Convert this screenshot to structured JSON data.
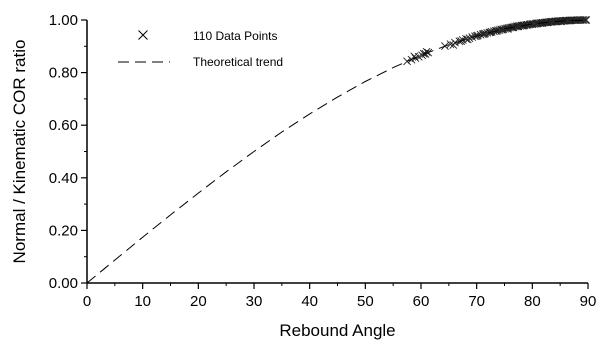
{
  "chart_data": {
    "type": "scatter",
    "xlabel": "Rebound Angle",
    "ylabel": "Normal / Kinematic COR ratio",
    "xlim": [
      0,
      90
    ],
    "ylim": [
      0,
      1.0
    ],
    "x_ticks": [
      "0",
      "10",
      "20",
      "30",
      "40",
      "50",
      "60",
      "70",
      "80",
      "90"
    ],
    "y_ticks": [
      "0.00",
      "0.20",
      "0.40",
      "0.60",
      "0.80",
      "1.00"
    ],
    "x_tick_values": [
      0,
      10,
      20,
      30,
      40,
      50,
      60,
      70,
      80,
      90
    ],
    "y_tick_values": [
      0,
      0.2,
      0.4,
      0.6,
      0.8,
      1.0
    ],
    "grid": false,
    "legend_position": "top-left",
    "legend": [
      {
        "label": "110 Data Points",
        "marker": "x"
      },
      {
        "label": "Theoretical trend",
        "line": "dashed"
      }
    ],
    "series": [
      {
        "name": "110 Data Points",
        "kind": "scatter",
        "marker": "x",
        "x": [
          57.5,
          58.3,
          59.0,
          59.6,
          60.2,
          60.8,
          61.3,
          64.3,
          65.3,
          66.1,
          66.9,
          67.5,
          68.1,
          68.7,
          69.2,
          69.7,
          70.2,
          70.7,
          71.1,
          71.5,
          71.9,
          72.3,
          72.7,
          73.1,
          73.4,
          73.8,
          74.1,
          74.4,
          74.8,
          75.1,
          75.4,
          75.7,
          76.0,
          76.3,
          76.6,
          76.9,
          77.2,
          77.5,
          77.8,
          78.1,
          78.4,
          78.6,
          78.9,
          79.2,
          79.5,
          79.7,
          80.0,
          80.3,
          80.6,
          80.8,
          81.1,
          81.4,
          81.6,
          81.9,
          82.2,
          82.4,
          82.7,
          82.9,
          83.2,
          83.5,
          83.7,
          84.0,
          84.2,
          84.5,
          84.7,
          85.0,
          85.2,
          85.5,
          85.7,
          86.0,
          86.2,
          86.5,
          86.7,
          87.0,
          87.2,
          87.5,
          87.7,
          88.0,
          88.2,
          88.5,
          88.7,
          89.0,
          89.2,
          89.5,
          89.7,
          58.8,
          60.5,
          61.0,
          65.8,
          67.2,
          68.4,
          70.0,
          71.3,
          72.5,
          73.6,
          74.6,
          75.6,
          76.5,
          77.4,
          78.3,
          79.1,
          80.0,
          80.9,
          81.8,
          82.6,
          83.4,
          84.3,
          85.1,
          86.0,
          86.8
        ],
        "y": [
          0.843,
          0.849,
          0.855,
          0.86,
          0.866,
          0.871,
          0.876,
          0.901,
          0.908,
          0.914,
          0.919,
          0.924,
          0.928,
          0.931,
          0.935,
          0.938,
          0.941,
          0.944,
          0.946,
          0.949,
          0.951,
          0.953,
          0.955,
          0.957,
          0.959,
          0.961,
          0.962,
          0.964,
          0.965,
          0.967,
          0.968,
          0.97,
          0.971,
          0.972,
          0.973,
          0.975,
          0.976,
          0.977,
          0.978,
          0.979,
          0.98,
          0.98,
          0.981,
          0.982,
          0.983,
          0.984,
          0.985,
          0.985,
          0.986,
          0.987,
          0.988,
          0.988,
          0.989,
          0.99,
          0.99,
          0.991,
          0.991,
          0.992,
          0.993,
          0.993,
          0.994,
          0.994,
          0.995,
          0.995,
          0.996,
          0.996,
          0.996,
          0.997,
          0.997,
          0.998,
          0.998,
          0.998,
          0.998,
          0.999,
          0.999,
          0.999,
          0.999,
          0.999,
          1.0,
          1.0,
          1.0,
          1.0,
          1.0,
          1.0,
          1.0,
          0.862,
          0.872,
          0.879,
          0.905,
          0.92,
          0.926,
          0.939,
          0.947,
          0.953,
          0.958,
          0.963,
          0.966,
          0.971,
          0.975,
          0.978,
          0.982,
          0.984,
          0.987,
          0.988,
          0.991,
          0.993,
          0.994,
          0.995,
          0.997,
          0.998
        ]
      },
      {
        "name": "Theoretical trend",
        "kind": "line",
        "style": "dashed",
        "x": [
          0,
          5,
          10,
          15,
          20,
          25,
          30,
          35,
          40,
          45,
          50,
          55,
          60,
          65,
          70,
          75,
          80,
          85,
          90
        ],
        "y": [
          0.0,
          0.087,
          0.174,
          0.259,
          0.342,
          0.423,
          0.5,
          0.574,
          0.643,
          0.707,
          0.766,
          0.819,
          0.866,
          0.906,
          0.94,
          0.966,
          0.985,
          0.996,
          1.0
        ]
      }
    ]
  }
}
